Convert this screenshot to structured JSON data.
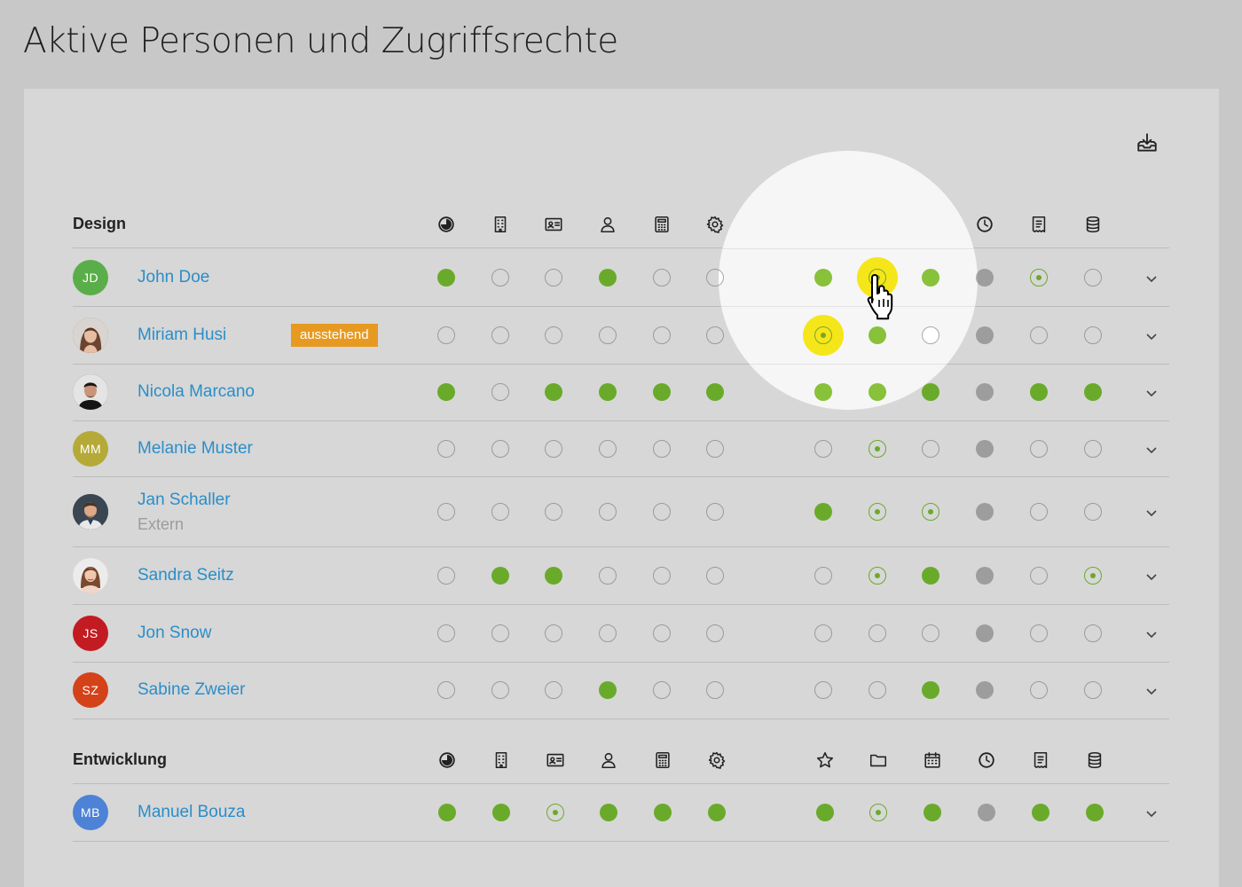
{
  "title": "Aktive Personen und Zugriffsrechte",
  "icons": {
    "download": "download-tray-icon",
    "columns": [
      "pie-chart-icon",
      "building-icon",
      "id-card-icon",
      "person-icon",
      "calculator-icon",
      "gear-icon",
      "star-icon",
      "folder-icon",
      "calendar-icon",
      "clock-icon",
      "receipt-icon",
      "database-icon"
    ],
    "cursor": "hand-pointer-icon",
    "expand": "chevron-down-icon"
  },
  "colors": {
    "granted": "#6aaa2a",
    "partial": "#6aaa2a",
    "locked": "#9d9d9d",
    "link": "#2a8ec9",
    "badge": "#e69a22",
    "highlight": "#f5e61a"
  },
  "permission_legend": {
    "on": "granted",
    "off": "none",
    "partial": "partial",
    "locked": "not-available"
  },
  "groups": [
    {
      "name": "Design",
      "members": [
        {
          "initials": "JD",
          "name": "John Doe",
          "avatar_color": "#5aae49",
          "permissions": [
            "on",
            "off",
            "off",
            "on",
            "off",
            "off",
            "on",
            "partial",
            "on",
            "locked",
            "partial",
            "off"
          ]
        },
        {
          "initials": "",
          "photo": true,
          "name": "Miriam Husi",
          "badge": "ausstehend",
          "avatar_color": "#8a6048",
          "permissions": [
            "off",
            "off",
            "off",
            "off",
            "off",
            "off",
            "partial",
            "on",
            "off",
            "locked",
            "off",
            "off"
          ]
        },
        {
          "initials": "",
          "photo": true,
          "name": "Nicola Marcano",
          "avatar_color": "#3b3432",
          "permissions": [
            "on",
            "off",
            "on",
            "on",
            "on",
            "on",
            "on",
            "on",
            "on",
            "locked",
            "on",
            "on"
          ]
        },
        {
          "initials": "MM",
          "name": "Melanie Muster",
          "avatar_color": "#b5aa38",
          "permissions": [
            "off",
            "off",
            "off",
            "off",
            "off",
            "off",
            "off",
            "partial",
            "off",
            "locked",
            "off",
            "off"
          ]
        },
        {
          "initials": "",
          "photo": true,
          "name": "Jan Schaller",
          "subtitle": "Extern",
          "avatar_color": "#434b55",
          "permissions": [
            "off",
            "off",
            "off",
            "off",
            "off",
            "off",
            "on",
            "partial",
            "partial",
            "locked",
            "off",
            "off"
          ]
        },
        {
          "initials": "",
          "photo": true,
          "name": "Sandra Seitz",
          "avatar_color": "#c99a7e",
          "permissions": [
            "off",
            "on",
            "on",
            "off",
            "off",
            "off",
            "off",
            "partial",
            "on",
            "locked",
            "off",
            "partial"
          ]
        },
        {
          "initials": "JS",
          "name": "Jon Snow",
          "avatar_color": "#c31b22",
          "permissions": [
            "off",
            "off",
            "off",
            "off",
            "off",
            "off",
            "off",
            "off",
            "off",
            "locked",
            "off",
            "off"
          ]
        },
        {
          "initials": "SZ",
          "name": "Sabine Zweier",
          "avatar_color": "#d4421a",
          "permissions": [
            "off",
            "off",
            "off",
            "on",
            "off",
            "off",
            "off",
            "off",
            "on",
            "locked",
            "off",
            "off"
          ]
        }
      ]
    },
    {
      "name": "Entwicklung",
      "members": [
        {
          "initials": "MB",
          "name": "Manuel Bouza",
          "avatar_color": "#4d82d6",
          "permissions": [
            "on",
            "on",
            "partial",
            "on",
            "on",
            "on",
            "on",
            "partial",
            "on",
            "locked",
            "on",
            "on"
          ]
        }
      ]
    }
  ],
  "spotlight": {
    "cells": [
      {
        "member": "John Doe",
        "column": "folder-icon",
        "state": "partial",
        "highlighted": true,
        "hovered": true
      },
      {
        "member": "Miriam Husi",
        "column": "star-icon",
        "state": "partial",
        "highlighted": true
      }
    ]
  }
}
